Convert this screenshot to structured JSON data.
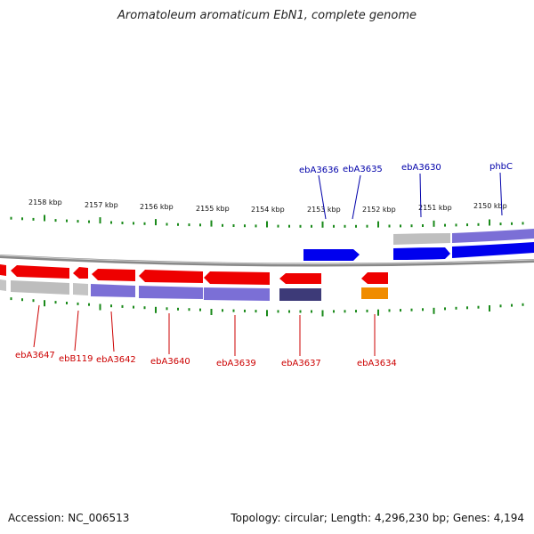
{
  "title": "Aromatoleum aromaticum EbN1, complete genome",
  "accession": "Accession: NC_006513",
  "topology": "Topology: circular; Length: 4,296,230 bp; Genes: 4,194",
  "colors": {
    "backbone": "#808080",
    "tick": "#1a8a1a",
    "forward_gene": "#0000ff",
    "reverse_gene": "#ff0000",
    "forward_label": "#0000aa",
    "reverse_label": "#cc0000"
  },
  "ticks": [
    "2158 kbp",
    "2157 kbp",
    "2156 kbp",
    "2155 kbp",
    "2154 kbp",
    "2153 kbp",
    "2152 kbp",
    "2151 kbp",
    "2150 kbp"
  ],
  "forward_genes": [
    "ebA3636",
    "ebA3635",
    "ebA3630",
    "phbC"
  ],
  "reverse_genes": [
    "ebA3647",
    "ebB119",
    "ebA3642",
    "ebA3640",
    "ebA3639",
    "ebA3637",
    "ebA3634"
  ]
}
